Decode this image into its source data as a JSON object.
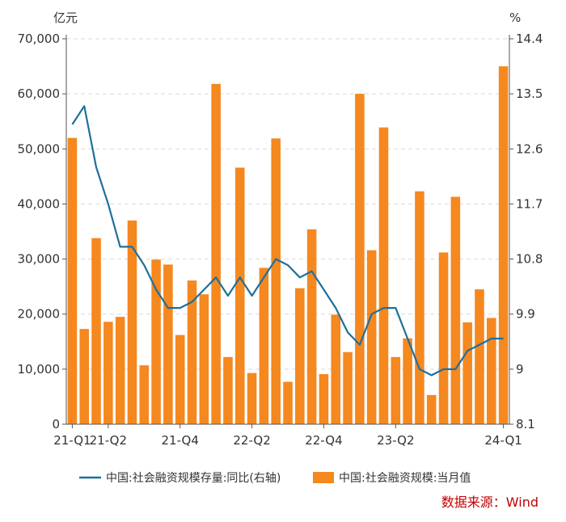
{
  "chart_data": {
    "type": "bar+line",
    "left_unit": "亿元",
    "right_unit": "%",
    "x_tick_labels": [
      "21-Q1",
      "21-Q2",
      "21-Q4",
      "22-Q2",
      "22-Q4",
      "23-Q2",
      "24-Q1"
    ],
    "months": [
      "2021-01",
      "2021-02",
      "2021-03",
      "2021-04",
      "2021-05",
      "2021-06",
      "2021-07",
      "2021-08",
      "2021-09",
      "2021-10",
      "2021-11",
      "2021-12",
      "2022-01",
      "2022-02",
      "2022-03",
      "2022-04",
      "2022-05",
      "2022-06",
      "2022-07",
      "2022-08",
      "2022-09",
      "2022-10",
      "2022-11",
      "2022-12",
      "2023-01",
      "2023-02",
      "2023-03",
      "2023-04",
      "2023-05",
      "2023-06",
      "2023-07",
      "2023-08",
      "2023-09",
      "2023-10",
      "2023-11",
      "2023-12",
      "2024-01"
    ],
    "y_left": {
      "min": 0,
      "max": 70000,
      "ticks": [
        "0",
        "10,000",
        "20,000",
        "30,000",
        "40,000",
        "50,000",
        "60,000",
        "70,000"
      ]
    },
    "y_right": {
      "min": 8.1,
      "max": 14.4,
      "ticks": [
        "8.1",
        "9",
        "9.9",
        "10.8",
        "11.7",
        "12.6",
        "13.5",
        "14.4"
      ]
    },
    "series": [
      {
        "name": "中国:社会融资规模:当月值",
        "kind": "bar",
        "axis": "left",
        "color": "#f5881f",
        "values": [
          52000,
          17300,
          33800,
          18600,
          19500,
          37000,
          10700,
          29900,
          29000,
          16200,
          26100,
          23600,
          61800,
          12200,
          46600,
          9300,
          28400,
          51900,
          7700,
          24700,
          35400,
          9100,
          19900,
          13100,
          60000,
          31600,
          53900,
          12200,
          15600,
          42300,
          5300,
          31200,
          41300,
          18500,
          24500,
          19300,
          65000
        ]
      },
      {
        "name": "中国:社会融资规模存量:同比(右轴)",
        "kind": "line",
        "axis": "right",
        "color": "#1f6f9c",
        "values": [
          13.0,
          13.3,
          12.3,
          11.7,
          11.0,
          11.0,
          10.7,
          10.3,
          10.0,
          10.0,
          10.1,
          10.3,
          10.5,
          10.2,
          10.5,
          10.2,
          10.5,
          10.8,
          10.7,
          10.5,
          10.6,
          10.3,
          10.0,
          9.6,
          9.4,
          9.9,
          10.0,
          10.0,
          9.5,
          9.0,
          8.9,
          9.0,
          9.0,
          9.3,
          9.4,
          9.5,
          9.5
        ]
      }
    ],
    "gridlines": true,
    "legend_position": "bottom"
  },
  "source_note": "数据来源：Wind"
}
